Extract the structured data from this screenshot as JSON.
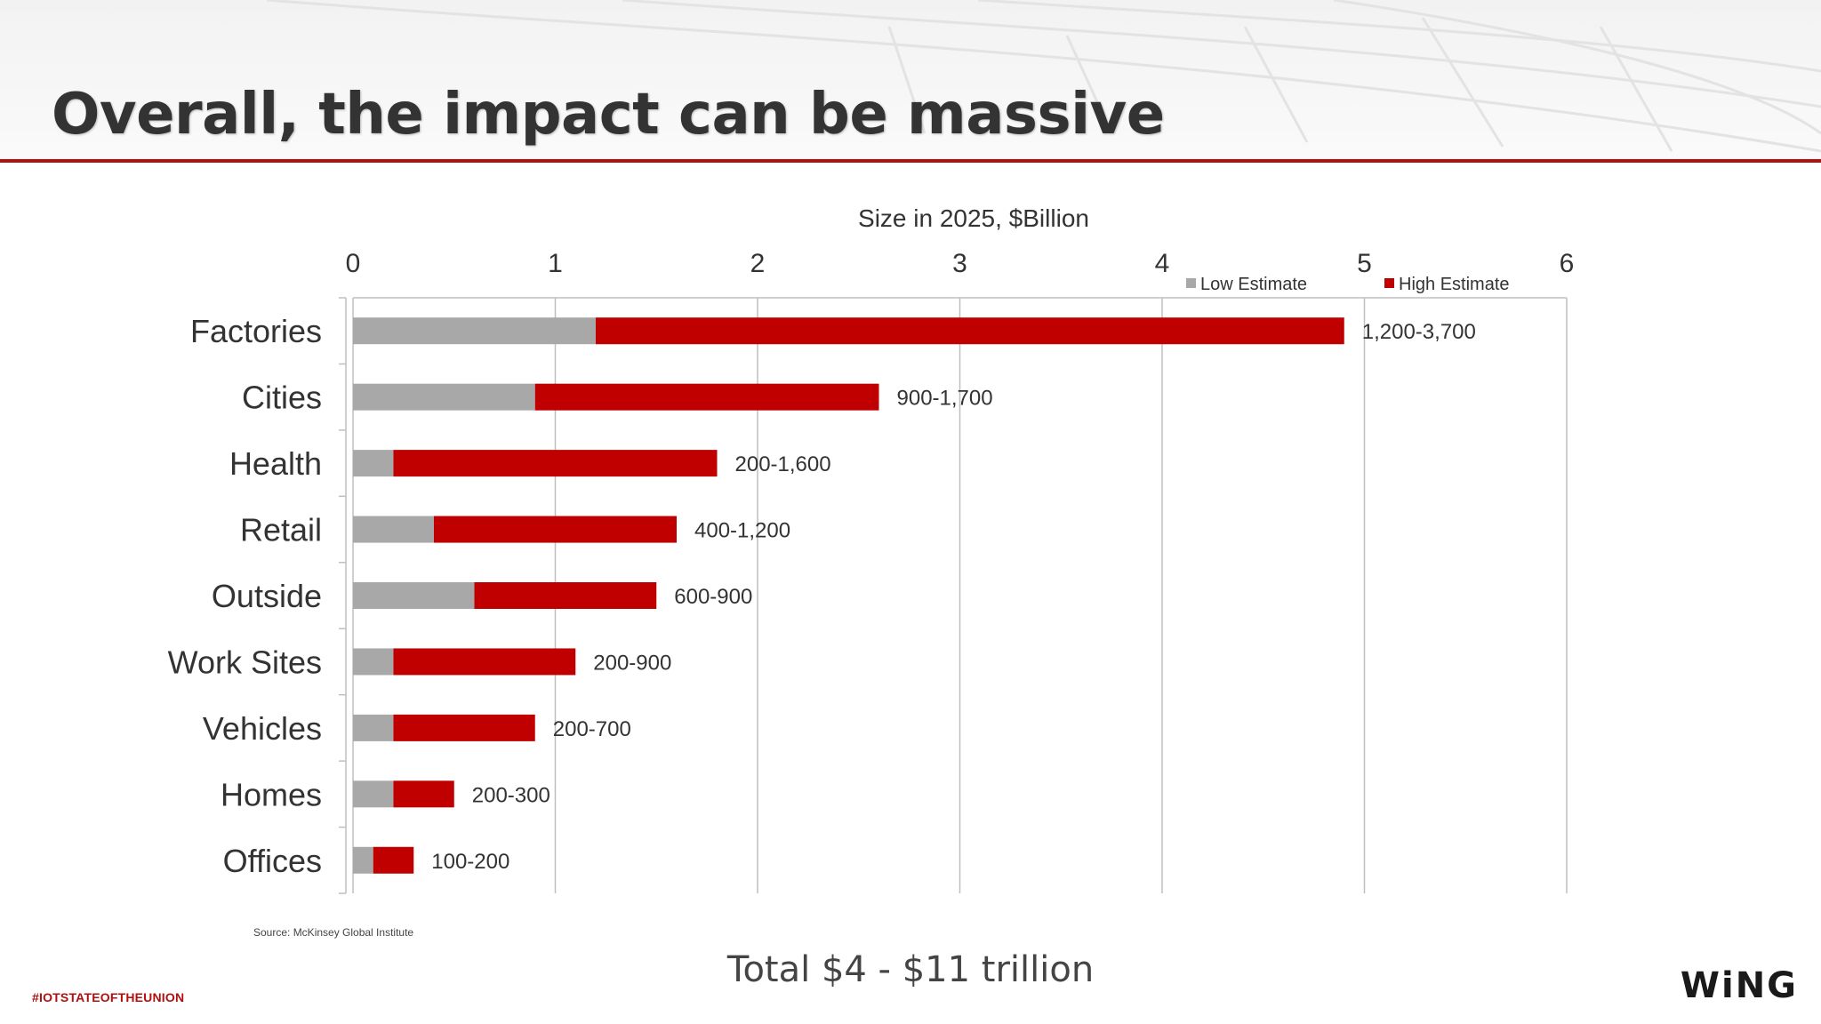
{
  "slide": {
    "title": "Overall, the impact can be massive",
    "source": "Source: McKinsey Global Institute",
    "total": "Total $4 - $11 trillion",
    "hashtag": "#IOTSTATEOFTHEUNION",
    "logo": "WiNG"
  },
  "colors": {
    "low": "#a8a8a8",
    "high": "#c00000",
    "accent": "#b01010"
  },
  "chart_data": {
    "type": "bar",
    "orientation": "horizontal",
    "stacked": true,
    "title": "Size in 2025, $Billion",
    "categories": [
      "Factories",
      "Cities",
      "Health",
      "Retail",
      "Outside",
      "Work Sites",
      "Vehicles",
      "Homes",
      "Offices"
    ],
    "series": [
      {
        "name": "Low Estimate",
        "values": [
          1.2,
          0.9,
          0.2,
          0.4,
          0.6,
          0.2,
          0.2,
          0.2,
          0.1
        ]
      },
      {
        "name": "High Estimate",
        "values": [
          3.7,
          1.7,
          1.6,
          1.2,
          0.9,
          0.9,
          0.7,
          0.3,
          0.2
        ]
      }
    ],
    "data_labels": [
      "1,200-3,700",
      "900-1,700",
      "200-1,600",
      "400-1,200",
      "600-900",
      "200-900",
      "200-700",
      "200-300",
      "100-200"
    ],
    "xlim": [
      0,
      6
    ],
    "xticks": [
      0,
      1,
      2,
      3,
      4,
      5,
      6
    ],
    "grid": true,
    "legend_position": "top-right"
  }
}
